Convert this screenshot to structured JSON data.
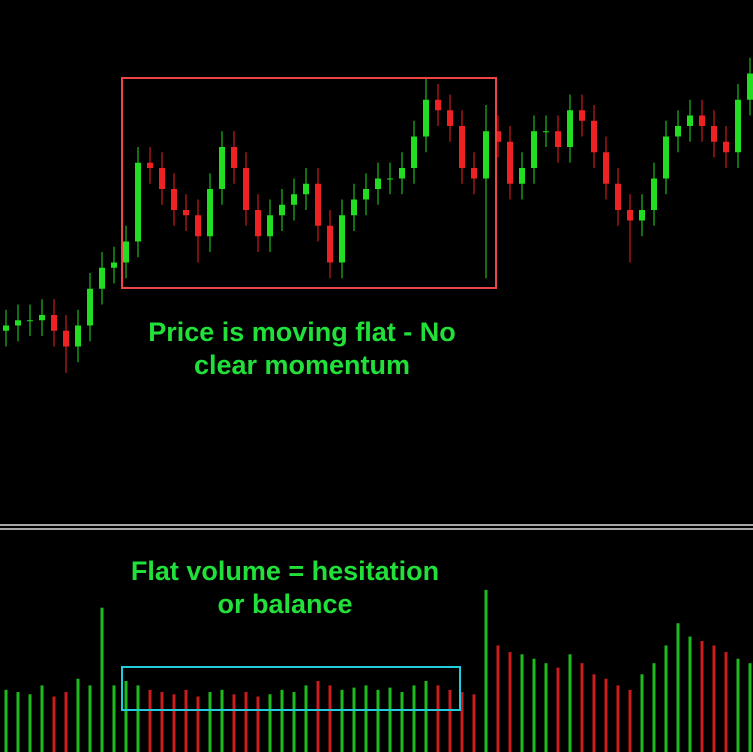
{
  "chart_data": [
    {
      "type": "candlestick",
      "up_color": "#22dd22",
      "down_color": "#ee2222",
      "ylim": [
        0,
        100
      ],
      "open": [
        37,
        38,
        39,
        39,
        40,
        37,
        34,
        38,
        45,
        49,
        50,
        54,
        69,
        68,
        64,
        60,
        59,
        55,
        64,
        72,
        68,
        60,
        55,
        59,
        61,
        63,
        65,
        57,
        50,
        59,
        62,
        64,
        66,
        66,
        68,
        74,
        81,
        79,
        76,
        68,
        66,
        75,
        73,
        65,
        68,
        75,
        75,
        72,
        79,
        77,
        71,
        65,
        60,
        58,
        60,
        66,
        74,
        76,
        78,
        76,
        73,
        71,
        81
      ],
      "high": [
        41,
        42,
        42,
        43,
        43,
        40,
        41,
        48,
        52,
        53,
        57,
        72,
        72,
        71,
        67,
        63,
        62,
        67,
        75,
        75,
        71,
        63,
        62,
        64,
        66,
        68,
        68,
        60,
        62,
        65,
        67,
        69,
        69,
        71,
        77,
        85,
        84,
        82,
        79,
        71,
        80,
        78,
        76,
        71,
        78,
        78,
        78,
        82,
        82,
        80,
        74,
        68,
        63,
        63,
        69,
        77,
        79,
        81,
        81,
        79,
        76,
        84,
        89
      ],
      "low": [
        34,
        35,
        36,
        36,
        34,
        29,
        31,
        35,
        42,
        46,
        47,
        51,
        65,
        61,
        57,
        56,
        50,
        52,
        61,
        65,
        57,
        52,
        52,
        56,
        58,
        60,
        54,
        47,
        47,
        56,
        59,
        61,
        63,
        63,
        65,
        71,
        76,
        73,
        65,
        63,
        47,
        70,
        62,
        62,
        65,
        72,
        69,
        69,
        74,
        68,
        62,
        57,
        50,
        55,
        57,
        63,
        71,
        73,
        73,
        70,
        68,
        68,
        78
      ],
      "close": [
        38,
        39,
        39,
        40,
        37,
        34,
        38,
        45,
        49,
        50,
        54,
        69,
        68,
        64,
        60,
        59,
        55,
        64,
        72,
        68,
        60,
        55,
        59,
        61,
        63,
        65,
        57,
        50,
        59,
        62,
        64,
        66,
        66,
        68,
        74,
        81,
        79,
        76,
        68,
        66,
        75,
        73,
        65,
        68,
        75,
        75,
        72,
        79,
        77,
        71,
        65,
        60,
        58,
        60,
        66,
        74,
        76,
        78,
        76,
        73,
        71,
        81,
        86
      ],
      "annotation": [
        "Price is moving flat - No",
        "clear momentum"
      ]
    },
    {
      "type": "volume",
      "ylim": [
        0,
        100
      ],
      "values": [
        28,
        27,
        26,
        30,
        25,
        27,
        33,
        30,
        65,
        30,
        32,
        30,
        28,
        27,
        26,
        28,
        25,
        27,
        28,
        26,
        27,
        25,
        26,
        28,
        27,
        30,
        32,
        30,
        28,
        29,
        30,
        28,
        29,
        27,
        30,
        32,
        30,
        28,
        27,
        26,
        73,
        48,
        45,
        44,
        42,
        40,
        38,
        44,
        40,
        35,
        33,
        30,
        28,
        35,
        40,
        48,
        58,
        52,
        50,
        48,
        45,
        42,
        40
      ],
      "annotation": [
        "Flat volume = hesitation",
        "or balance"
      ]
    }
  ]
}
